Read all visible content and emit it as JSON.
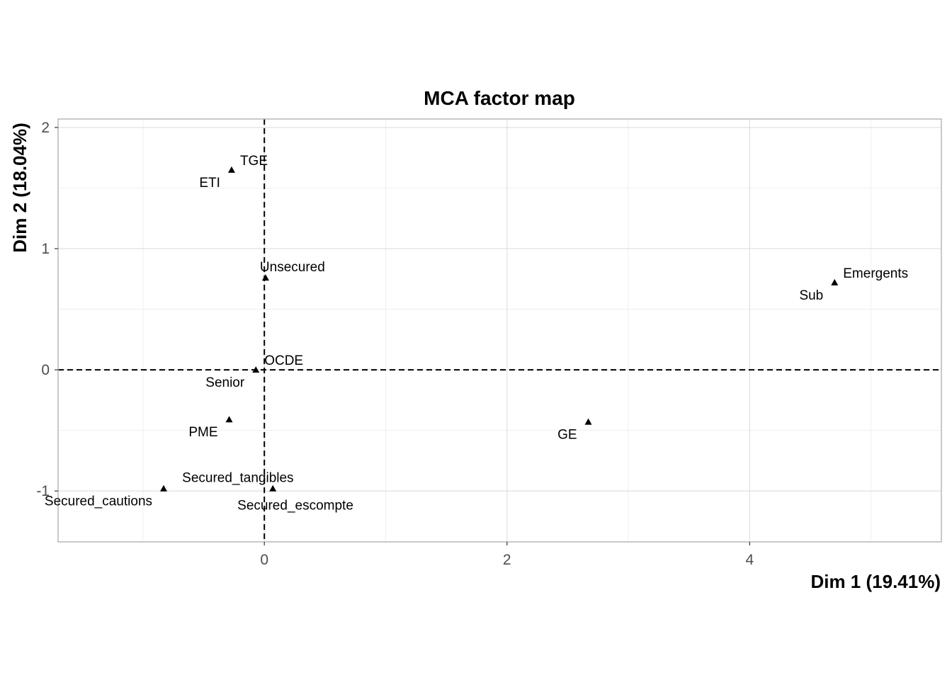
{
  "chart_data": {
    "type": "scatter",
    "title": "MCA factor map",
    "xlabel": "Dim 1 (19.41%)",
    "ylabel": "Dim 2 (18.04%)",
    "xlim": [
      -1.7,
      5.58
    ],
    "ylim": [
      -1.42,
      2.07
    ],
    "x_ticks": [
      0,
      2,
      4
    ],
    "y_ticks": [
      -1,
      0,
      1,
      2
    ],
    "grid": true,
    "reference_lines": {
      "x": 0,
      "y": 0,
      "style": "dashed"
    },
    "marker": "triangle",
    "points": [
      {
        "label": "TGE",
        "x": -0.27,
        "y": 1.65,
        "label_pos": "top-right"
      },
      {
        "label": "ETI",
        "x": -0.27,
        "y": 1.65,
        "label_pos": "bottom-left"
      },
      {
        "label": "Unsecured",
        "x": 0.01,
        "y": 0.76,
        "label_pos": "top"
      },
      {
        "label": "Emergents",
        "x": 4.7,
        "y": 0.72,
        "label_pos": "top-right"
      },
      {
        "label": "Sub",
        "x": 4.7,
        "y": 0.72,
        "label_pos": "bottom-left"
      },
      {
        "label": "OCDE",
        "x": -0.07,
        "y": 0.0,
        "label_pos": "top-right"
      },
      {
        "label": "Senior",
        "x": -0.07,
        "y": 0.0,
        "label_pos": "bottom-left"
      },
      {
        "label": "PME",
        "x": -0.29,
        "y": -0.41,
        "label_pos": "bottom-left"
      },
      {
        "label": "GE",
        "x": 2.67,
        "y": -0.43,
        "label_pos": "bottom-left"
      },
      {
        "label": "Secured_tangibles",
        "x": 0.07,
        "y": -0.98,
        "label_pos": "top-left"
      },
      {
        "label": "Secured_escompte",
        "x": 0.07,
        "y": -0.98,
        "label_pos": "bottom-right"
      },
      {
        "label": "Secured_cautions",
        "x": -0.83,
        "y": -0.98,
        "label_pos": "bottom-left"
      }
    ]
  }
}
